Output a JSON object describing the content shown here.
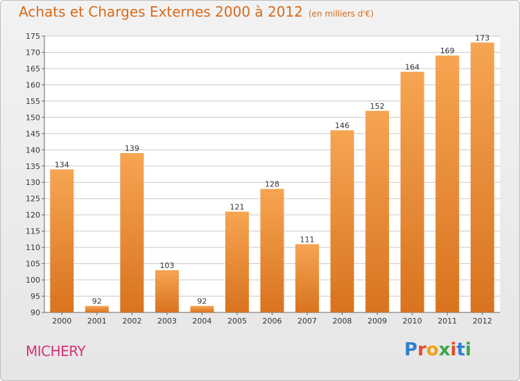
{
  "header": {
    "title": "Achats et Charges Externes 2000 à 2012",
    "unit": "(en milliers d'€)"
  },
  "footer": {
    "town": "MICHERY",
    "logo": "Proxiti"
  },
  "colors": {
    "bar_top": "#f6a552",
    "bar_bottom": "#d9731f",
    "title": "#d66a1c",
    "town": "#d6337a",
    "grid": "#c8c8c8"
  },
  "chart_data": {
    "type": "bar",
    "categories": [
      "2000",
      "2001",
      "2002",
      "2003",
      "2004",
      "2005",
      "2006",
      "2007",
      "2008",
      "2009",
      "2010",
      "2011",
      "2012"
    ],
    "values": [
      134,
      92,
      139,
      103,
      92,
      121,
      128,
      111,
      146,
      152,
      164,
      169,
      173
    ],
    "ylim": [
      90,
      175
    ],
    "yticks": [
      90,
      95,
      100,
      105,
      110,
      115,
      120,
      125,
      130,
      135,
      140,
      145,
      150,
      155,
      160,
      165,
      170,
      175
    ],
    "grid": true
  }
}
